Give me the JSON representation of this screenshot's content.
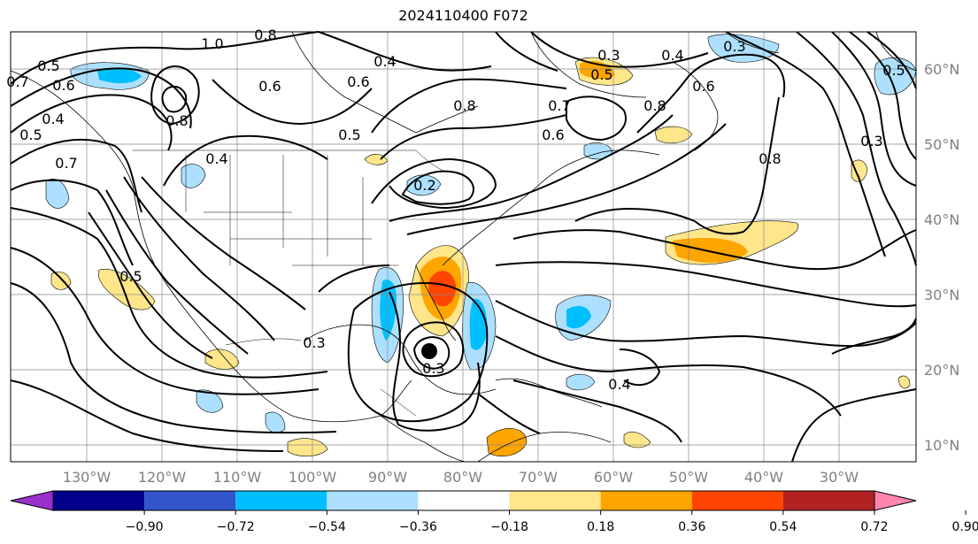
{
  "title": "2024110400 F072",
  "map": {
    "lat_labels": [
      "60°N",
      "50°N",
      "40°N",
      "30°N",
      "20°N",
      "10°N"
    ],
    "lon_labels": [
      "130°W",
      "120°W",
      "110°W",
      "100°W",
      "90°W",
      "80°W",
      "70°W",
      "60°W",
      "50°W",
      "40°W",
      "30°W"
    ],
    "contour_labels": [
      "1.0",
      "0.8",
      "0.5",
      "0.6",
      "0.7",
      "0.4",
      "0.5",
      "0.8",
      "0.4",
      "0.5",
      "0.7",
      "0.6",
      "0.4",
      "0.6",
      "0.5",
      "0.8",
      "0.7",
      "0.6",
      "0.3",
      "0.5",
      "0.4",
      "0.8",
      "0.6",
      "0.8",
      "0.3",
      "0.3",
      "0.3",
      "0.2",
      "0.4",
      "0.3",
      "0.5"
    ]
  },
  "colorbar": {
    "ticks": [
      "−0.90",
      "−0.72",
      "−0.54",
      "−0.36",
      "−0.18",
      "0.18",
      "0.36",
      "0.54",
      "0.72",
      "0.90"
    ],
    "colors": [
      "#9932cc",
      "#00008b",
      "#3355cc",
      "#00bfff",
      "#ade0ff",
      "#ffffff",
      "#ffe68a",
      "#ffa500",
      "#ff4500",
      "#b22222",
      "#ff85b0"
    ]
  }
}
